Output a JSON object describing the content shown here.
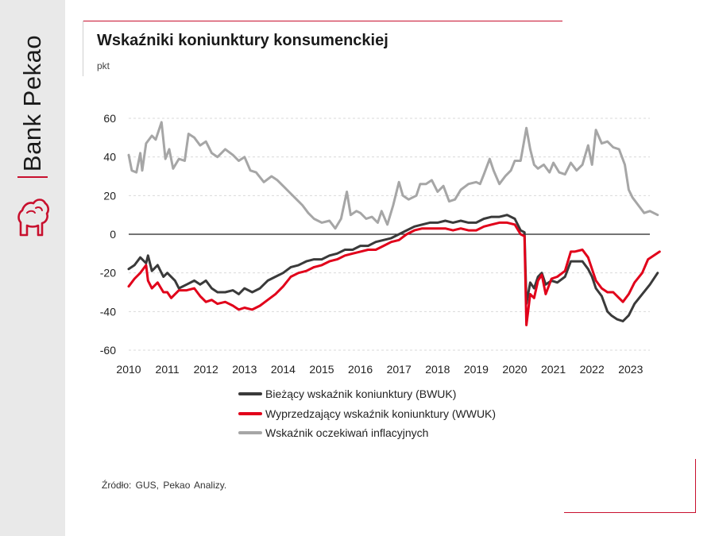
{
  "brand": {
    "name": "Bank Pekao",
    "color": "#c8102e"
  },
  "header": {
    "title": "Wskaźniki koniunktury konsumenckiej",
    "unit": "pkt"
  },
  "footer": {
    "source": "Źródło: GUS, Pekao Analizy."
  },
  "chart_data": {
    "type": "line",
    "ylim": [
      -60,
      60
    ],
    "y_ticks": [
      60,
      40,
      20,
      0,
      -20,
      -40,
      -60
    ],
    "xlim": [
      2010,
      2023.75
    ],
    "x_ticks": [
      "2010",
      "2011",
      "2012",
      "2013",
      "2014",
      "2015",
      "2016",
      "2017",
      "2018",
      "2019",
      "2020",
      "2021",
      "2022",
      "2023"
    ],
    "grid": "horizontal dashed",
    "legend": "bottom",
    "series": [
      {
        "name": "Bieżący wskaźnik koniunktury (BWUK)",
        "color": "#3a3a3a",
        "points": [
          [
            2010.0,
            -18
          ],
          [
            2010.15,
            -16
          ],
          [
            2010.3,
            -12
          ],
          [
            2010.45,
            -15
          ],
          [
            2010.5,
            -11
          ],
          [
            2010.6,
            -19
          ],
          [
            2010.75,
            -16
          ],
          [
            2010.9,
            -22
          ],
          [
            2011.0,
            -20
          ],
          [
            2011.2,
            -24
          ],
          [
            2011.3,
            -28
          ],
          [
            2011.5,
            -26
          ],
          [
            2011.7,
            -24
          ],
          [
            2011.85,
            -26
          ],
          [
            2012.0,
            -24
          ],
          [
            2012.15,
            -28
          ],
          [
            2012.3,
            -30
          ],
          [
            2012.5,
            -30
          ],
          [
            2012.7,
            -29
          ],
          [
            2012.85,
            -31
          ],
          [
            2013.0,
            -28
          ],
          [
            2013.2,
            -30
          ],
          [
            2013.4,
            -28
          ],
          [
            2013.6,
            -24
          ],
          [
            2013.8,
            -22
          ],
          [
            2014.0,
            -20
          ],
          [
            2014.2,
            -17
          ],
          [
            2014.4,
            -16
          ],
          [
            2014.6,
            -14
          ],
          [
            2014.8,
            -13
          ],
          [
            2015.0,
            -13
          ],
          [
            2015.2,
            -11
          ],
          [
            2015.4,
            -10
          ],
          [
            2015.6,
            -8
          ],
          [
            2015.8,
            -8
          ],
          [
            2016.0,
            -6
          ],
          [
            2016.2,
            -6
          ],
          [
            2016.4,
            -4
          ],
          [
            2016.6,
            -3
          ],
          [
            2016.8,
            -2
          ],
          [
            2017.0,
            0
          ],
          [
            2017.2,
            2
          ],
          [
            2017.4,
            4
          ],
          [
            2017.6,
            5
          ],
          [
            2017.8,
            6
          ],
          [
            2018.0,
            6
          ],
          [
            2018.2,
            7
          ],
          [
            2018.4,
            6
          ],
          [
            2018.6,
            7
          ],
          [
            2018.8,
            6
          ],
          [
            2019.0,
            6
          ],
          [
            2019.2,
            8
          ],
          [
            2019.4,
            9
          ],
          [
            2019.6,
            9
          ],
          [
            2019.8,
            10
          ],
          [
            2020.0,
            8
          ],
          [
            2020.15,
            2
          ],
          [
            2020.25,
            1
          ],
          [
            2020.3,
            -36
          ],
          [
            2020.4,
            -25
          ],
          [
            2020.5,
            -28
          ],
          [
            2020.6,
            -22
          ],
          [
            2020.7,
            -20
          ],
          [
            2020.8,
            -26
          ],
          [
            2020.95,
            -24
          ],
          [
            2021.1,
            -25
          ],
          [
            2021.3,
            -22
          ],
          [
            2021.45,
            -14
          ],
          [
            2021.55,
            -14
          ],
          [
            2021.75,
            -14
          ],
          [
            2021.9,
            -18
          ],
          [
            2022.0,
            -22
          ],
          [
            2022.1,
            -28
          ],
          [
            2022.25,
            -32
          ],
          [
            2022.4,
            -40
          ],
          [
            2022.5,
            -42
          ],
          [
            2022.65,
            -44
          ],
          [
            2022.8,
            -45
          ],
          [
            2022.95,
            -42
          ],
          [
            2023.1,
            -36
          ],
          [
            2023.3,
            -31
          ],
          [
            2023.5,
            -26
          ],
          [
            2023.7,
            -20
          ]
        ]
      },
      {
        "name": "Wyprzedzający wskaźnik koniunktury (WWUK)",
        "color": "#e1001a",
        "points": [
          [
            2010.0,
            -27
          ],
          [
            2010.15,
            -23
          ],
          [
            2010.3,
            -20
          ],
          [
            2010.45,
            -16
          ],
          [
            2010.5,
            -24
          ],
          [
            2010.6,
            -28
          ],
          [
            2010.75,
            -25
          ],
          [
            2010.9,
            -30
          ],
          [
            2011.0,
            -30
          ],
          [
            2011.1,
            -33
          ],
          [
            2011.3,
            -29
          ],
          [
            2011.5,
            -29
          ],
          [
            2011.7,
            -28
          ],
          [
            2011.85,
            -32
          ],
          [
            2012.0,
            -35
          ],
          [
            2012.15,
            -34
          ],
          [
            2012.3,
            -36
          ],
          [
            2012.5,
            -35
          ],
          [
            2012.7,
            -37
          ],
          [
            2012.85,
            -39
          ],
          [
            2013.0,
            -38
          ],
          [
            2013.2,
            -39
          ],
          [
            2013.4,
            -37
          ],
          [
            2013.6,
            -34
          ],
          [
            2013.8,
            -31
          ],
          [
            2014.0,
            -27
          ],
          [
            2014.2,
            -22
          ],
          [
            2014.4,
            -20
          ],
          [
            2014.6,
            -19
          ],
          [
            2014.8,
            -17
          ],
          [
            2015.0,
            -16
          ],
          [
            2015.2,
            -14
          ],
          [
            2015.4,
            -13
          ],
          [
            2015.6,
            -11
          ],
          [
            2015.8,
            -10
          ],
          [
            2016.0,
            -9
          ],
          [
            2016.2,
            -8
          ],
          [
            2016.4,
            -8
          ],
          [
            2016.6,
            -6
          ],
          [
            2016.8,
            -4
          ],
          [
            2017.0,
            -3
          ],
          [
            2017.2,
            0
          ],
          [
            2017.4,
            2
          ],
          [
            2017.6,
            3
          ],
          [
            2017.8,
            3
          ],
          [
            2018.0,
            3
          ],
          [
            2018.2,
            3
          ],
          [
            2018.4,
            2
          ],
          [
            2018.6,
            3
          ],
          [
            2018.8,
            2
          ],
          [
            2019.0,
            2
          ],
          [
            2019.2,
            4
          ],
          [
            2019.4,
            5
          ],
          [
            2019.6,
            6
          ],
          [
            2019.8,
            6
          ],
          [
            2020.0,
            5
          ],
          [
            2020.15,
            0
          ],
          [
            2020.25,
            -1
          ],
          [
            2020.3,
            -47
          ],
          [
            2020.4,
            -31
          ],
          [
            2020.5,
            -33
          ],
          [
            2020.6,
            -24
          ],
          [
            2020.7,
            -21
          ],
          [
            2020.8,
            -31
          ],
          [
            2020.95,
            -23
          ],
          [
            2021.1,
            -22
          ],
          [
            2021.3,
            -19
          ],
          [
            2021.45,
            -9
          ],
          [
            2021.55,
            -9
          ],
          [
            2021.75,
            -8
          ],
          [
            2021.9,
            -12
          ],
          [
            2022.0,
            -18
          ],
          [
            2022.1,
            -24
          ],
          [
            2022.25,
            -28
          ],
          [
            2022.4,
            -30
          ],
          [
            2022.55,
            -30
          ],
          [
            2022.7,
            -33
          ],
          [
            2022.8,
            -35
          ],
          [
            2022.95,
            -31
          ],
          [
            2023.1,
            -25
          ],
          [
            2023.3,
            -20
          ],
          [
            2023.45,
            -13
          ],
          [
            2023.6,
            -11
          ],
          [
            2023.75,
            -9
          ]
        ]
      },
      {
        "name": "Wskaźnik oczekiwań inflacyjnych",
        "color": "#a6a6a6",
        "points": [
          [
            2010.0,
            41
          ],
          [
            2010.08,
            33
          ],
          [
            2010.2,
            32
          ],
          [
            2010.3,
            42
          ],
          [
            2010.35,
            33
          ],
          [
            2010.45,
            47
          ],
          [
            2010.6,
            51
          ],
          [
            2010.7,
            49
          ],
          [
            2010.85,
            58
          ],
          [
            2010.95,
            39
          ],
          [
            2011.05,
            44
          ],
          [
            2011.15,
            34
          ],
          [
            2011.3,
            39
          ],
          [
            2011.45,
            38
          ],
          [
            2011.55,
            52
          ],
          [
            2011.7,
            50
          ],
          [
            2011.85,
            46
          ],
          [
            2012.0,
            48
          ],
          [
            2012.15,
            42
          ],
          [
            2012.3,
            40
          ],
          [
            2012.5,
            44
          ],
          [
            2012.7,
            41
          ],
          [
            2012.85,
            38
          ],
          [
            2013.0,
            40
          ],
          [
            2013.15,
            33
          ],
          [
            2013.3,
            32
          ],
          [
            2013.5,
            27
          ],
          [
            2013.7,
            30
          ],
          [
            2013.85,
            28
          ],
          [
            2014.0,
            25
          ],
          [
            2014.15,
            22
          ],
          [
            2014.3,
            19
          ],
          [
            2014.5,
            15
          ],
          [
            2014.65,
            11
          ],
          [
            2014.8,
            8
          ],
          [
            2015.0,
            6
          ],
          [
            2015.2,
            7
          ],
          [
            2015.35,
            3
          ],
          [
            2015.5,
            8
          ],
          [
            2015.65,
            22
          ],
          [
            2015.75,
            10
          ],
          [
            2015.9,
            12
          ],
          [
            2016.0,
            11
          ],
          [
            2016.15,
            8
          ],
          [
            2016.3,
            9
          ],
          [
            2016.45,
            6
          ],
          [
            2016.55,
            12
          ],
          [
            2016.7,
            5
          ],
          [
            2016.85,
            15
          ],
          [
            2017.0,
            27
          ],
          [
            2017.1,
            20
          ],
          [
            2017.25,
            18
          ],
          [
            2017.45,
            20
          ],
          [
            2017.55,
            26
          ],
          [
            2017.7,
            26
          ],
          [
            2017.85,
            28
          ],
          [
            2018.0,
            22
          ],
          [
            2018.15,
            25
          ],
          [
            2018.3,
            17
          ],
          [
            2018.45,
            18
          ],
          [
            2018.6,
            23
          ],
          [
            2018.8,
            26
          ],
          [
            2019.0,
            27
          ],
          [
            2019.1,
            26
          ],
          [
            2019.2,
            31
          ],
          [
            2019.35,
            39
          ],
          [
            2019.45,
            33
          ],
          [
            2019.6,
            26
          ],
          [
            2019.75,
            30
          ],
          [
            2019.9,
            33
          ],
          [
            2020.0,
            38
          ],
          [
            2020.15,
            38
          ],
          [
            2020.3,
            55
          ],
          [
            2020.4,
            44
          ],
          [
            2020.5,
            36
          ],
          [
            2020.6,
            34
          ],
          [
            2020.75,
            36
          ],
          [
            2020.9,
            32
          ],
          [
            2021.0,
            37
          ],
          [
            2021.15,
            32
          ],
          [
            2021.3,
            31
          ],
          [
            2021.45,
            37
          ],
          [
            2021.6,
            33
          ],
          [
            2021.75,
            36
          ],
          [
            2021.9,
            46
          ],
          [
            2022.0,
            36
          ],
          [
            2022.1,
            54
          ],
          [
            2022.25,
            47
          ],
          [
            2022.4,
            48
          ],
          [
            2022.55,
            45
          ],
          [
            2022.7,
            44
          ],
          [
            2022.85,
            36
          ],
          [
            2022.95,
            23
          ],
          [
            2023.05,
            19
          ],
          [
            2023.2,
            15
          ],
          [
            2023.35,
            11
          ],
          [
            2023.5,
            12
          ],
          [
            2023.7,
            10
          ]
        ]
      }
    ]
  }
}
